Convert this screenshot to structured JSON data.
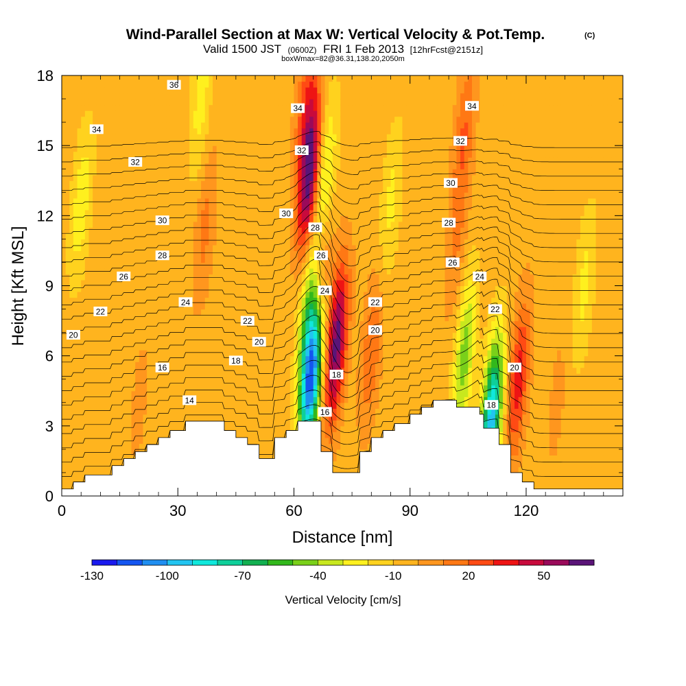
{
  "chart_data": {
    "type": "heatmap",
    "title": "Wind-Parallel Section at Max W: Vertical Velocity & Pot.Temp.",
    "title_mark": "(C)",
    "subtitle_line1": "Valid 1500 JST",
    "subtitle_zulu": "(0600Z)",
    "subtitle_date": "FRI 1 Feb 2013",
    "subtitle_fcst": "[12hrFcst@2151z]",
    "subtitle_line2": "boxWmax=82@36.31,138.20,2050m",
    "xlabel": "Distance [nm]",
    "ylabel": "Height [Kft MSL]",
    "xlim": [
      0,
      145
    ],
    "ylim": [
      0,
      18
    ],
    "x_ticks": [
      "0",
      "30",
      "60",
      "90",
      "120"
    ],
    "y_ticks": [
      "0",
      "3",
      "6",
      "9",
      "12",
      "15",
      "18"
    ],
    "colorbar": {
      "label": "Vertical Velocity [cm/s]",
      "tick_labels": [
        "-130",
        "-100",
        "-70",
        "-40",
        "-10",
        "20",
        "50"
      ],
      "levels": [
        -130,
        -120,
        -110,
        -100,
        -90,
        -80,
        -70,
        -60,
        -50,
        -40,
        -30,
        -20,
        -10,
        0,
        10,
        20,
        30,
        40,
        50,
        60
      ],
      "colors": [
        "#1a1aee",
        "#1455f0",
        "#1f8ef0",
        "#22c4f0",
        "#10e8dc",
        "#0fcf9a",
        "#12b050",
        "#32b81c",
        "#7ad01a",
        "#c8e81e",
        "#fff01e",
        "#ffd21e",
        "#ffb41e",
        "#ff961e",
        "#ff7814",
        "#ff4b14",
        "#ee1414",
        "#c80a3c",
        "#9a0a5a",
        "#5a1478"
      ]
    },
    "background_velocity": -5,
    "velocity_features": [
      {
        "x": 64,
        "z": 13.8,
        "w": 75
      },
      {
        "x": 63,
        "z": 16.8,
        "w": 25
      },
      {
        "x": 71,
        "z": 6.5,
        "w": 70
      },
      {
        "x": 66.5,
        "z": 9.5,
        "w": 40
      },
      {
        "x": 64.5,
        "z": 5.2,
        "w": -110
      },
      {
        "x": 64,
        "z": 8.2,
        "w": -45
      },
      {
        "x": 68,
        "z": 13.5,
        "w": -35
      },
      {
        "x": 118,
        "z": 5.0,
        "w": 40
      },
      {
        "x": 104,
        "z": 15.5,
        "w": 25
      },
      {
        "x": 102,
        "z": 10.5,
        "w": 14
      },
      {
        "x": 111,
        "z": 3.3,
        "w": -90
      },
      {
        "x": 104,
        "z": 6.0,
        "w": -40
      },
      {
        "x": 80,
        "z": 6.2,
        "w": 24
      },
      {
        "x": 37,
        "z": 11.5,
        "w": 18
      },
      {
        "x": 36,
        "z": 17.0,
        "w": -20
      },
      {
        "x": 5,
        "z": 12.5,
        "w": -22
      },
      {
        "x": 85,
        "z": 12.5,
        "w": -18
      },
      {
        "x": 135,
        "z": 9.0,
        "w": -18
      },
      {
        "x": 128,
        "z": 4.0,
        "w": 8
      },
      {
        "x": 20,
        "z": 4.0,
        "w": 8
      }
    ],
    "terrain": [
      [
        0,
        0.3
      ],
      [
        3,
        0.3
      ],
      [
        3,
        0.6
      ],
      [
        6,
        0.6
      ],
      [
        6,
        0.9
      ],
      [
        13,
        0.9
      ],
      [
        13,
        1.3
      ],
      [
        16,
        1.3
      ],
      [
        16,
        1.6
      ],
      [
        19,
        1.6
      ],
      [
        19,
        1.9
      ],
      [
        22,
        1.9
      ],
      [
        22,
        2.2
      ],
      [
        25,
        2.2
      ],
      [
        25,
        2.5
      ],
      [
        28,
        2.5
      ],
      [
        28,
        2.8
      ],
      [
        32,
        2.8
      ],
      [
        32,
        3.2
      ],
      [
        42,
        3.2
      ],
      [
        42,
        2.8
      ],
      [
        45,
        2.8
      ],
      [
        45,
        2.5
      ],
      [
        48,
        2.5
      ],
      [
        48,
        2.2
      ],
      [
        51,
        2.2
      ],
      [
        51,
        1.6
      ],
      [
        55,
        1.6
      ],
      [
        55,
        2.5
      ],
      [
        58,
        2.5
      ],
      [
        58,
        2.8
      ],
      [
        61,
        2.8
      ],
      [
        61,
        3.2
      ],
      [
        67,
        3.2
      ],
      [
        67,
        1.9
      ],
      [
        70,
        1.9
      ],
      [
        70,
        1.0
      ],
      [
        77,
        1.0
      ],
      [
        77,
        1.9
      ],
      [
        80,
        1.9
      ],
      [
        80,
        2.5
      ],
      [
        83,
        2.5
      ],
      [
        83,
        2.8
      ],
      [
        86,
        2.8
      ],
      [
        86,
        3.1
      ],
      [
        90,
        3.1
      ],
      [
        90,
        3.5
      ],
      [
        93,
        3.5
      ],
      [
        93,
        3.8
      ],
      [
        96,
        3.8
      ],
      [
        96,
        4.1
      ],
      [
        102,
        4.1
      ],
      [
        102,
        3.8
      ],
      [
        108,
        3.8
      ],
      [
        108,
        3.5
      ],
      [
        109,
        3.5
      ],
      [
        109,
        2.9
      ],
      [
        113,
        2.9
      ],
      [
        113,
        2.2
      ],
      [
        116,
        2.2
      ],
      [
        116,
        1.0
      ],
      [
        119,
        1.0
      ],
      [
        119,
        0.6
      ],
      [
        122,
        0.6
      ],
      [
        122,
        0.3
      ],
      [
        145,
        0.3
      ]
    ],
    "theta_levels": [
      12,
      13,
      14,
      15,
      16,
      17,
      18,
      19,
      20,
      21,
      22,
      23,
      24,
      25,
      26,
      27,
      28,
      29,
      30,
      31,
      32,
      33,
      34,
      35,
      36
    ],
    "contour_labels": [
      {
        "text": "36",
        "x": 29,
        "z": 17.6
      },
      {
        "text": "34",
        "x": 9,
        "z": 15.7
      },
      {
        "text": "32",
        "x": 19,
        "z": 14.3
      },
      {
        "text": "30",
        "x": 26,
        "z": 11.8
      },
      {
        "text": "28",
        "x": 26,
        "z": 10.3
      },
      {
        "text": "26",
        "x": 16,
        "z": 9.4
      },
      {
        "text": "24",
        "x": 32,
        "z": 8.3
      },
      {
        "text": "22",
        "x": 10,
        "z": 7.9
      },
      {
        "text": "20",
        "x": 3,
        "z": 6.9
      },
      {
        "text": "22",
        "x": 48,
        "z": 7.5
      },
      {
        "text": "20",
        "x": 51,
        "z": 6.6
      },
      {
        "text": "18",
        "x": 45,
        "z": 5.8
      },
      {
        "text": "16",
        "x": 26,
        "z": 5.5
      },
      {
        "text": "14",
        "x": 33,
        "z": 4.1
      },
      {
        "text": "34",
        "x": 61,
        "z": 16.6
      },
      {
        "text": "32",
        "x": 62,
        "z": 14.8
      },
      {
        "text": "30",
        "x": 58,
        "z": 12.1
      },
      {
        "text": "28",
        "x": 65.5,
        "z": 11.5
      },
      {
        "text": "26",
        "x": 67,
        "z": 10.3
      },
      {
        "text": "24",
        "x": 68,
        "z": 8.8
      },
      {
        "text": "18",
        "x": 71,
        "z": 5.2
      },
      {
        "text": "16",
        "x": 68,
        "z": 3.6
      },
      {
        "text": "22",
        "x": 81,
        "z": 8.3
      },
      {
        "text": "20",
        "x": 81,
        "z": 7.1
      },
      {
        "text": "34",
        "x": 106,
        "z": 16.7
      },
      {
        "text": "32",
        "x": 103,
        "z": 15.2
      },
      {
        "text": "30",
        "x": 100.5,
        "z": 13.4
      },
      {
        "text": "28",
        "x": 100,
        "z": 11.7
      },
      {
        "text": "26",
        "x": 101,
        "z": 10.0
      },
      {
        "text": "24",
        "x": 108,
        "z": 9.4
      },
      {
        "text": "22",
        "x": 112,
        "z": 8.0
      },
      {
        "text": "20",
        "x": 117,
        "z": 5.5
      },
      {
        "text": "18",
        "x": 111,
        "z": 3.9
      }
    ]
  }
}
